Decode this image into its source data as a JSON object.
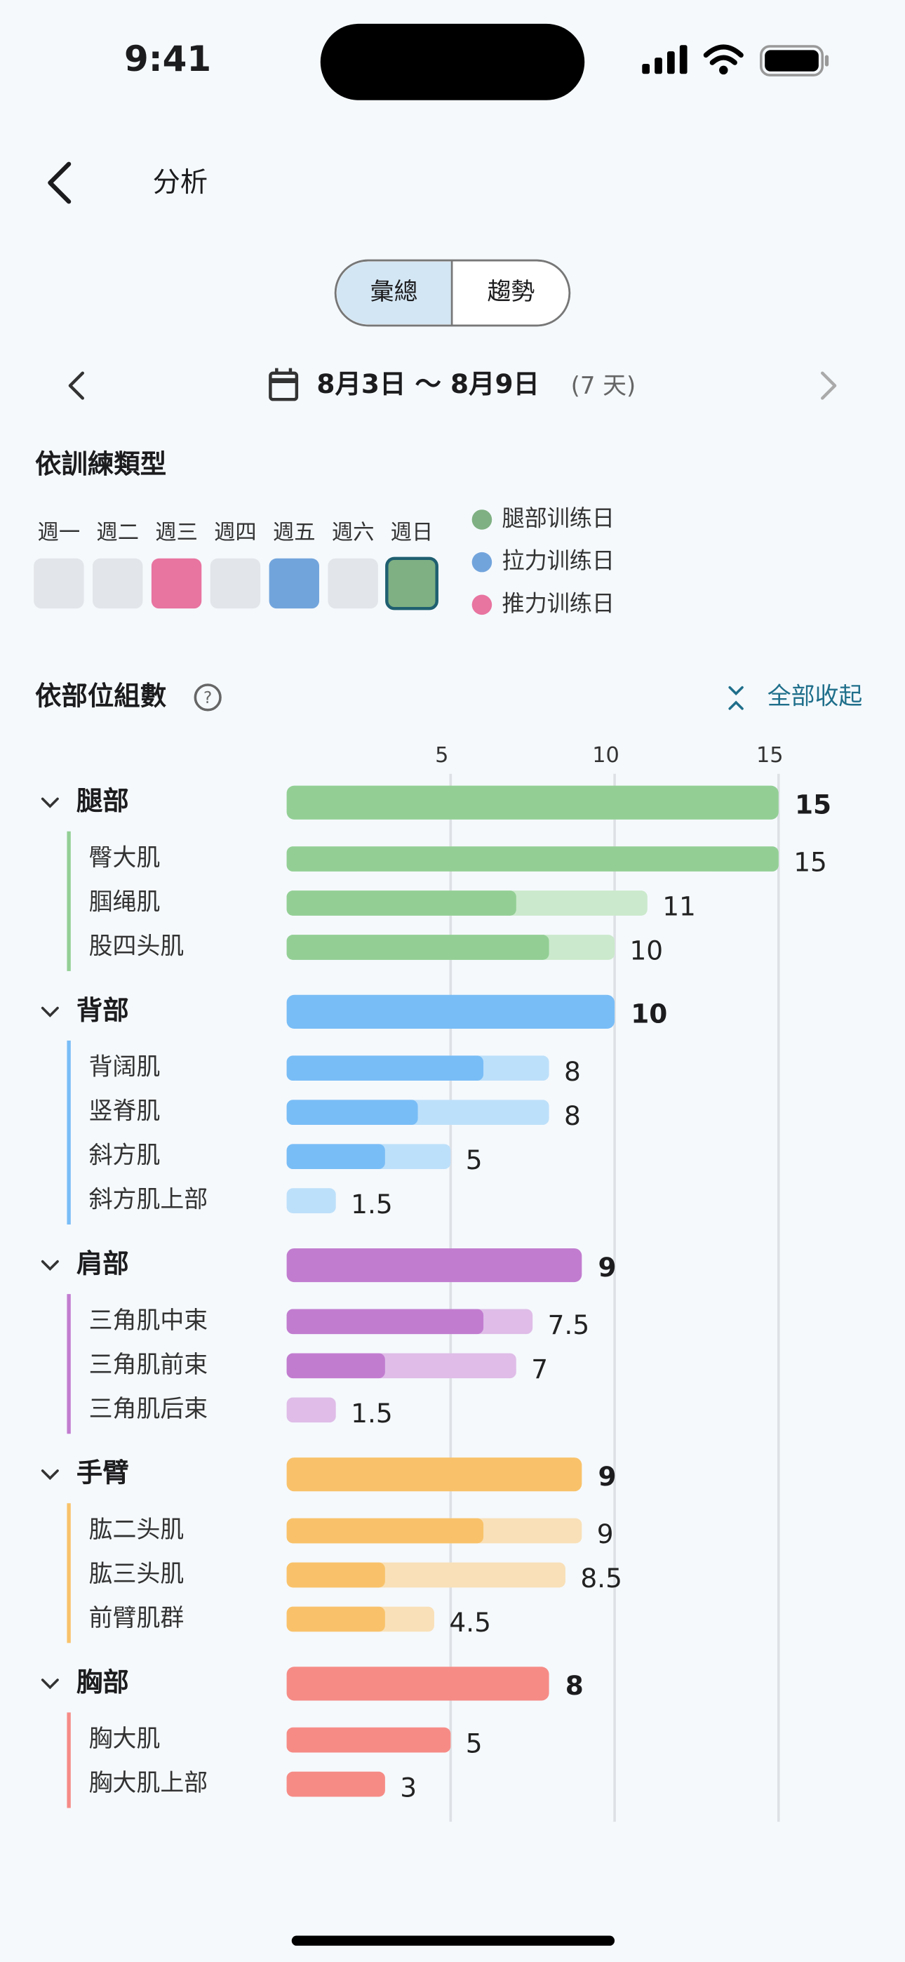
{
  "status_bar": {
    "time": "9:41"
  },
  "header": {
    "title": "分析"
  },
  "tabs": [
    {
      "label": "彙總",
      "selected": true
    },
    {
      "label": "趨勢",
      "selected": false
    }
  ],
  "date_range": {
    "label": "8月3日 ～ 8月9日",
    "days": "(7 天)"
  },
  "training_type": {
    "title": "依訓練類型",
    "days": [
      {
        "label": "週一",
        "color": "#e2e5e9",
        "selected": false
      },
      {
        "label": "週二",
        "color": "#e2e5e9",
        "selected": false
      },
      {
        "label": "週三",
        "color": "#e874a0",
        "selected": false
      },
      {
        "label": "週四",
        "color": "#e2e5e9",
        "selected": false
      },
      {
        "label": "週五",
        "color": "#72a4dc",
        "selected": false
      },
      {
        "label": "週六",
        "color": "#e2e5e9",
        "selected": false
      },
      {
        "label": "週日",
        "color": "#7fb083",
        "selected": true
      }
    ],
    "legend": [
      {
        "name": "腿部训练日",
        "color": "#7fb083"
      },
      {
        "name": "拉力训练日",
        "color": "#72a4dc"
      },
      {
        "name": "推力训练日",
        "color": "#e874a0"
      }
    ]
  },
  "chart_data": {
    "type": "bar",
    "title": "依部位組數",
    "action": "全部收起",
    "xlim": [
      0,
      15
    ],
    "xticks": [
      5,
      10,
      15
    ],
    "grid": true,
    "groups": [
      {
        "name": "腿部",
        "color": "#93cf95",
        "light_color": "#cbe9cc",
        "total": 15,
        "muscles": [
          {
            "name": "臀大肌",
            "value": 15,
            "direct": 15
          },
          {
            "name": "腘绳肌",
            "value": 11,
            "direct": 7
          },
          {
            "name": "股四头肌",
            "value": 10,
            "direct": 8
          }
        ]
      },
      {
        "name": "背部",
        "color": "#79bdf6",
        "light_color": "#bde0fa",
        "total": 10,
        "muscles": [
          {
            "name": "背阔肌",
            "value": 8,
            "direct": 6
          },
          {
            "name": "竖脊肌",
            "value": 8,
            "direct": 4
          },
          {
            "name": "斜方肌",
            "value": 5,
            "direct": 3
          },
          {
            "name": "斜方肌上部",
            "value": 1.5,
            "direct": 0
          }
        ]
      },
      {
        "name": "肩部",
        "color": "#c17ccf",
        "light_color": "#dfbde8",
        "total": 9,
        "muscles": [
          {
            "name": "三角肌中束",
            "value": 7.5,
            "direct": 6
          },
          {
            "name": "三角肌前束",
            "value": 7,
            "direct": 3
          },
          {
            "name": "三角肌后束",
            "value": 1.5,
            "direct": 0
          }
        ]
      },
      {
        "name": "手臂",
        "color": "#f9c26a",
        "light_color": "#f9e0b8",
        "total": 9,
        "muscles": [
          {
            "name": "肱二头肌",
            "value": 9,
            "direct": 6
          },
          {
            "name": "肱三头肌",
            "value": 8.5,
            "direct": 3
          },
          {
            "name": "前臂肌群",
            "value": 4.5,
            "direct": 3
          }
        ]
      },
      {
        "name": "胸部",
        "color": "#f68b86",
        "light_color": "#fbc5c2",
        "total": 8,
        "muscles": [
          {
            "name": "胸大肌",
            "value": 5,
            "direct": 5
          },
          {
            "name": "胸大肌上部",
            "value": 3,
            "direct": 3
          }
        ]
      }
    ]
  }
}
